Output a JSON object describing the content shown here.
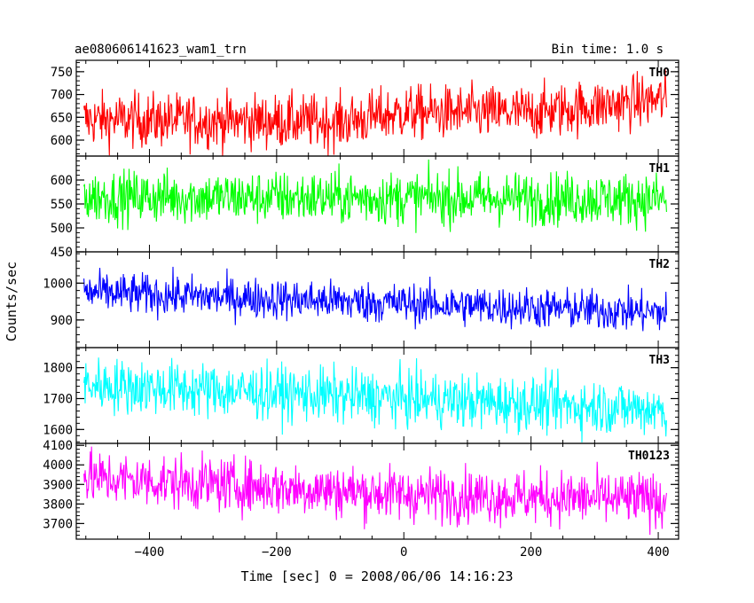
{
  "header": {
    "title": "ae080606141623_wam1_trn",
    "bin_time": "Bin time: 1.0 s"
  },
  "axes": {
    "xlabel": "Time [sec] 0 = 2008/06/06 14:16:23",
    "ylabel": "Counts/sec"
  },
  "chart_data": {
    "type": "line",
    "title": "ae080606141623_wam1_trn",
    "xlabel": "Time [sec] 0 = 2008/06/06 14:16:23",
    "ylabel": "Counts/sec",
    "xlim": [
      -515,
      432
    ],
    "x_range": [
      -503,
      413
    ],
    "x_ticks": [
      -400,
      -200,
      0,
      200,
      400
    ],
    "x_tick_labels": [
      "−400",
      "−200",
      "0",
      "200",
      "400"
    ],
    "series": [
      {
        "name": "TH0",
        "color": "#ff0000",
        "ylim": [
          565,
          775
        ],
        "yticks": [
          600,
          650,
          700,
          750
        ],
        "noise": 30,
        "trend": [
          {
            "t": -503,
            "v": 645
          },
          {
            "t": -100,
            "v": 640
          },
          {
            "t": 0,
            "v": 660
          },
          {
            "t": 200,
            "v": 660
          },
          {
            "t": 413,
            "v": 690
          }
        ]
      },
      {
        "name": "TH1",
        "color": "#00ff00",
        "ylim": [
          450,
          650
        ],
        "yticks": [
          450,
          500,
          550,
          600
        ],
        "noise": 28,
        "trend": [
          {
            "t": -503,
            "v": 565
          },
          {
            "t": 413,
            "v": 560
          }
        ]
      },
      {
        "name": "TH2",
        "color": "#0000ff",
        "ylim": [
          825,
          1085
        ],
        "yticks": [
          900,
          1000
        ],
        "noise": 28,
        "trend": [
          {
            "t": -503,
            "v": 975
          },
          {
            "t": 0,
            "v": 945
          },
          {
            "t": 413,
            "v": 920
          }
        ]
      },
      {
        "name": "TH3",
        "color": "#00ffff",
        "ylim": [
          1555,
          1865
        ],
        "yticks": [
          1600,
          1700,
          1800
        ],
        "noise": 45,
        "trend": [
          {
            "t": -503,
            "v": 1745
          },
          {
            "t": 0,
            "v": 1700
          },
          {
            "t": 413,
            "v": 1665
          }
        ]
      },
      {
        "name": "TH0123",
        "color": "#ff00ff",
        "ylim": [
          3620,
          4110
        ],
        "yticks": [
          3700,
          3800,
          3900,
          4000,
          4100
        ],
        "noise": 70,
        "trend": [
          {
            "t": -503,
            "v": 3935
          },
          {
            "t": 0,
            "v": 3850
          },
          {
            "t": 413,
            "v": 3820
          }
        ]
      }
    ]
  }
}
